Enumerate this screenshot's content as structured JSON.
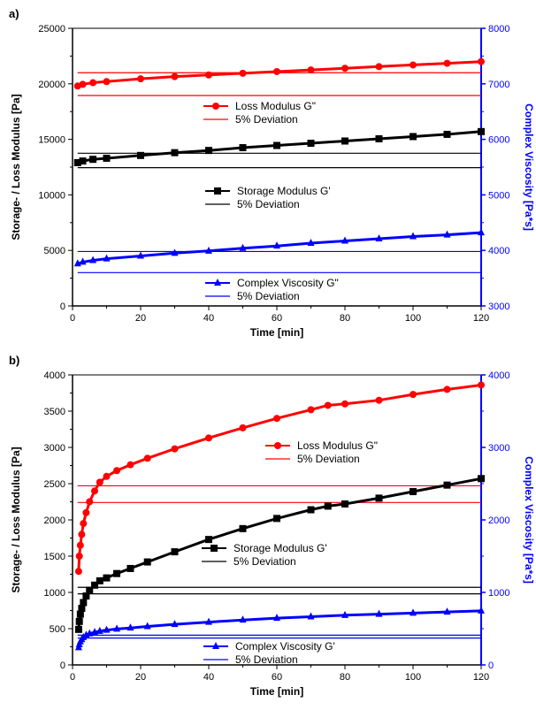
{
  "chart_data": [
    {
      "panel_label": "a)",
      "type": "scatter",
      "xlabel": "Time [min]",
      "ylabel": "Storage- / Loss Modulus [Pa]",
      "y2label": "Complex Viscosity [Pa*s]",
      "xlim": [
        0,
        120
      ],
      "ylim": [
        0,
        25000
      ],
      "y2lim": [
        3000,
        8000
      ],
      "xticks": [
        "0",
        "20",
        "40",
        "60",
        "80",
        "100",
        "120"
      ],
      "yticks": [
        "0",
        "5000",
        "10000",
        "15000",
        "20000",
        "25000"
      ],
      "y2ticks": [
        "3000",
        "4000",
        "5000",
        "6000",
        "7000",
        "8000"
      ],
      "grid": false,
      "colors": {
        "loss": "#ff0000",
        "storage": "#000000",
        "viscosity": "#0000ff",
        "right_axis": "#0000ff"
      },
      "series": [
        {
          "name": "Loss Modulus G\"",
          "axis": "left",
          "marker": "circle",
          "color": "#ff0000",
          "x": [
            1.5,
            3,
            6,
            10,
            20,
            30,
            40,
            50,
            60,
            70,
            80,
            90,
            100,
            110,
            120
          ],
          "y": [
            19800,
            19950,
            20100,
            20200,
            20450,
            20650,
            20800,
            20950,
            21100,
            21250,
            21400,
            21550,
            21700,
            21850,
            22000
          ]
        },
        {
          "name": "5% Deviation",
          "axis": "left",
          "type": "hline-pair",
          "color": "#ff0000",
          "y": [
            18950,
            21000
          ]
        },
        {
          "name": "Storage Modulus G'",
          "axis": "left",
          "marker": "square",
          "color": "#000000",
          "x": [
            1.5,
            3,
            6,
            10,
            20,
            30,
            40,
            50,
            60,
            70,
            80,
            90,
            100,
            110,
            120
          ],
          "y": [
            12900,
            13050,
            13200,
            13300,
            13550,
            13800,
            14000,
            14250,
            14450,
            14650,
            14850,
            15050,
            15250,
            15450,
            15700
          ]
        },
        {
          "name": "5% Deviation",
          "axis": "left",
          "type": "hline-pair",
          "color": "#000000",
          "y": [
            12450,
            13750
          ]
        },
        {
          "name": "Complex Viscosity G\"",
          "axis": "right",
          "marker": "triangle",
          "color": "#0000ff",
          "x": [
            1.5,
            3,
            6,
            10,
            20,
            30,
            40,
            50,
            60,
            70,
            80,
            90,
            100,
            110,
            120
          ],
          "y": [
            3760,
            3790,
            3820,
            3850,
            3900,
            3950,
            3990,
            4040,
            4080,
            4130,
            4170,
            4210,
            4250,
            4280,
            4320
          ]
        },
        {
          "name": "5% Deviation",
          "axis": "right",
          "type": "hline-pair",
          "color": "#0000ff",
          "y": [
            3600,
            3980
          ]
        }
      ],
      "legends": [
        {
          "items": [
            "Loss Modulus G\"",
            "5% Deviation"
          ],
          "colors": [
            "#ff0000",
            "#ff0000"
          ],
          "markers": [
            "circle",
            "none"
          ]
        },
        {
          "items": [
            "Storage Modulus G'",
            "5% Deviation"
          ],
          "colors": [
            "#000000",
            "#000000"
          ],
          "markers": [
            "square",
            "none"
          ]
        },
        {
          "items": [
            "Complex Viscosity G\"",
            "5% Deviation"
          ],
          "colors": [
            "#0000ff",
            "#0000ff"
          ],
          "markers": [
            "triangle",
            "none"
          ]
        }
      ]
    },
    {
      "panel_label": "b)",
      "type": "scatter",
      "xlabel": "Time [min]",
      "ylabel": "Storage- / Loss Modulus [Pa]",
      "y2label": "Complex Viscosity [Pa*s]",
      "xlim": [
        0,
        120
      ],
      "ylim": [
        0,
        4000
      ],
      "y2lim": [
        0,
        4000
      ],
      "xticks": [
        "0",
        "20",
        "40",
        "60",
        "80",
        "100",
        "120"
      ],
      "yticks": [
        "0",
        "500",
        "1000",
        "1500",
        "2000",
        "2500",
        "3000",
        "3500",
        "4000"
      ],
      "y2ticks": [
        "0",
        "1000",
        "2000",
        "3000",
        "4000"
      ],
      "grid": false,
      "colors": {
        "loss": "#ff0000",
        "storage": "#000000",
        "viscosity": "#0000ff",
        "right_axis": "#0000ff"
      },
      "series": [
        {
          "name": "Loss Modulus G\"",
          "axis": "left",
          "marker": "circle",
          "color": "#ff0000",
          "x": [
            1.8,
            2,
            2.3,
            2.7,
            3.2,
            4,
            5,
            6.5,
            8,
            10,
            13,
            17,
            22,
            30,
            40,
            50,
            60,
            70,
            75,
            80,
            90,
            100,
            110,
            120
          ],
          "y": [
            1290,
            1500,
            1650,
            1800,
            1950,
            2100,
            2250,
            2400,
            2520,
            2600,
            2680,
            2760,
            2850,
            2980,
            3130,
            3270,
            3400,
            3520,
            3580,
            3600,
            3650,
            3730,
            3800,
            3860
          ]
        },
        {
          "name": "5% Deviation",
          "axis": "left",
          "type": "hline-pair",
          "color": "#ff0000",
          "y": [
            2240,
            2470
          ]
        },
        {
          "name": "Storage Modulus G'",
          "axis": "left",
          "marker": "square",
          "color": "#000000",
          "x": [
            1.8,
            2,
            2.3,
            2.7,
            3.2,
            4,
            5,
            6.5,
            8,
            10,
            13,
            17,
            22,
            30,
            40,
            50,
            60,
            70,
            75,
            80,
            90,
            100,
            110,
            120
          ],
          "y": [
            490,
            600,
            700,
            780,
            860,
            950,
            1030,
            1100,
            1160,
            1200,
            1260,
            1330,
            1420,
            1560,
            1730,
            1880,
            2020,
            2140,
            2190,
            2220,
            2300,
            2390,
            2480,
            2570
          ]
        },
        {
          "name": "5% Deviation",
          "axis": "left",
          "type": "hline-pair",
          "color": "#000000",
          "y": [
            980,
            1070
          ]
        },
        {
          "name": "Complex Viscosity G'",
          "axis": "right",
          "marker": "triangle",
          "color": "#0000ff",
          "x": [
            1.8,
            2,
            2.3,
            2.7,
            3.2,
            4,
            5,
            6.5,
            8,
            10,
            13,
            17,
            22,
            30,
            40,
            50,
            60,
            70,
            80,
            90,
            100,
            110,
            120
          ],
          "y": [
            240,
            280,
            320,
            350,
            380,
            410,
            430,
            450,
            465,
            480,
            495,
            510,
            530,
            560,
            590,
            620,
            645,
            665,
            685,
            700,
            715,
            730,
            745
          ]
        },
        {
          "name": "5% Deviation",
          "axis": "right",
          "type": "hline-pair",
          "color": "#0000ff",
          "y": [
            370,
            410
          ]
        }
      ],
      "legends": [
        {
          "items": [
            "Loss Modulus G\"",
            "5% Deviation"
          ],
          "colors": [
            "#ff0000",
            "#ff0000"
          ],
          "markers": [
            "circle",
            "none"
          ]
        },
        {
          "items": [
            "Storage Modulus G'",
            "5% Deviation"
          ],
          "colors": [
            "#000000",
            "#000000"
          ],
          "markers": [
            "square",
            "none"
          ]
        },
        {
          "items": [
            "Complex Viscosity G'",
            "5% Deviation"
          ],
          "colors": [
            "#0000ff",
            "#0000ff"
          ],
          "markers": [
            "triangle",
            "none"
          ]
        }
      ]
    }
  ]
}
